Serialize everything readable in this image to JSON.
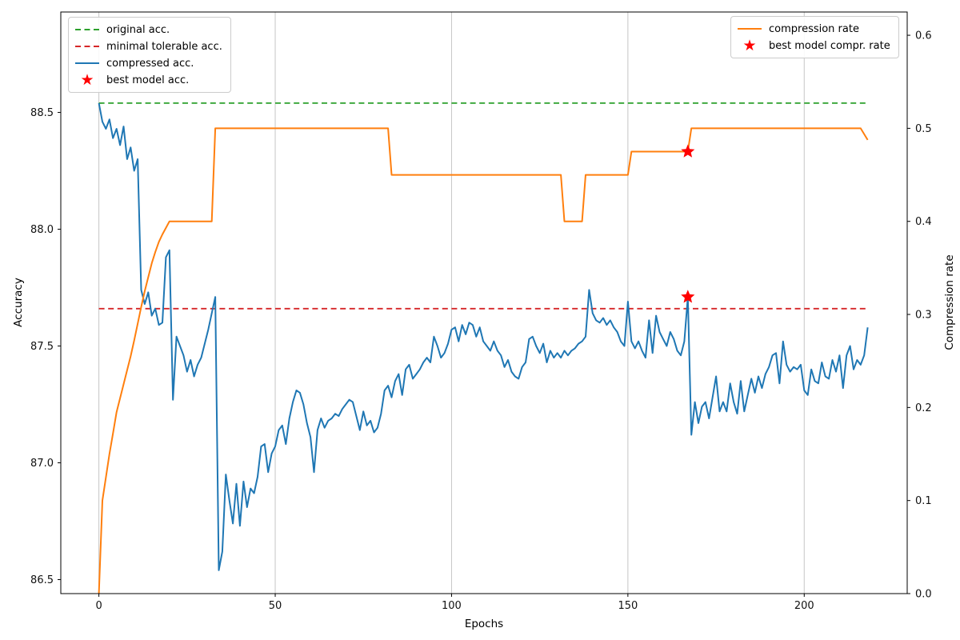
{
  "chart_data": {
    "type": "line",
    "title": "",
    "xlabel": "Epochs",
    "ylabel_left": "Accuracy",
    "ylabel_right": "Compression rate",
    "xlim": [
      -10.8,
      229.2
    ],
    "ylim_left": [
      86.44,
      88.93
    ],
    "ylim_right": [
      0.0,
      0.625
    ],
    "xticks": [
      0,
      50,
      100,
      150,
      200
    ],
    "yticks_left": [
      86.5,
      87.0,
      87.5,
      88.0,
      88.5
    ],
    "yticks_right": [
      0.0,
      0.1,
      0.2,
      0.3,
      0.4,
      0.5,
      0.6
    ],
    "grid": "vertical-gridlines-only",
    "grid_color": "#c6c6c6",
    "series": [
      {
        "name": "original acc.",
        "axis": "left",
        "type": "hline",
        "style": "dashed",
        "color": "#2ca02c",
        "y": 88.54,
        "x_range": [
          0,
          218
        ]
      },
      {
        "name": "minimal tolerable acc.",
        "axis": "left",
        "type": "hline",
        "style": "dashed",
        "color": "#d62728",
        "y": 87.66,
        "x_range": [
          0,
          218
        ]
      },
      {
        "name": "compressed acc.",
        "axis": "left",
        "type": "line",
        "style": "solid",
        "color": "#1f77b4",
        "x_start": 0,
        "x_step": 1,
        "values": [
          88.54,
          88.46,
          88.43,
          88.47,
          88.39,
          88.43,
          88.36,
          88.44,
          88.3,
          88.35,
          88.25,
          88.3,
          87.74,
          87.68,
          87.73,
          87.63,
          87.66,
          87.59,
          87.6,
          87.88,
          87.91,
          87.27,
          87.54,
          87.5,
          87.46,
          87.39,
          87.44,
          87.37,
          87.42,
          87.45,
          87.51,
          87.57,
          87.64,
          87.71,
          86.54,
          86.62,
          86.95,
          86.84,
          86.74,
          86.91,
          86.73,
          86.92,
          86.81,
          86.89,
          86.87,
          86.94,
          87.07,
          87.08,
          86.96,
          87.04,
          87.07,
          87.14,
          87.16,
          87.08,
          87.19,
          87.26,
          87.31,
          87.3,
          87.25,
          87.17,
          87.11,
          86.96,
          87.14,
          87.19,
          87.15,
          87.18,
          87.19,
          87.21,
          87.2,
          87.23,
          87.25,
          87.27,
          87.26,
          87.2,
          87.14,
          87.22,
          87.16,
          87.18,
          87.13,
          87.15,
          87.21,
          87.31,
          87.33,
          87.28,
          87.35,
          87.38,
          87.29,
          87.4,
          87.42,
          87.36,
          87.38,
          87.4,
          87.43,
          87.45,
          87.43,
          87.54,
          87.5,
          87.45,
          87.47,
          87.51,
          87.57,
          87.58,
          87.52,
          87.59,
          87.55,
          87.6,
          87.59,
          87.54,
          87.58,
          87.52,
          87.5,
          87.48,
          87.52,
          87.48,
          87.46,
          87.41,
          87.44,
          87.39,
          87.37,
          87.36,
          87.41,
          87.43,
          87.53,
          87.54,
          87.5,
          87.47,
          87.51,
          87.43,
          87.48,
          87.45,
          87.47,
          87.45,
          87.48,
          87.46,
          87.48,
          87.49,
          87.51,
          87.52,
          87.54,
          87.74,
          87.64,
          87.61,
          87.6,
          87.62,
          87.59,
          87.61,
          87.58,
          87.56,
          87.52,
          87.5,
          87.69,
          87.52,
          87.49,
          87.52,
          87.48,
          87.45,
          87.61,
          87.47,
          87.63,
          87.56,
          87.53,
          87.5,
          87.56,
          87.53,
          87.48,
          87.46,
          87.52,
          87.71,
          87.12,
          87.26,
          87.17,
          87.24,
          87.26,
          87.19,
          87.28,
          87.37,
          87.22,
          87.26,
          87.22,
          87.34,
          87.26,
          87.21,
          87.35,
          87.22,
          87.29,
          87.36,
          87.3,
          87.37,
          87.32,
          87.38,
          87.41,
          87.46,
          87.47,
          87.34,
          87.52,
          87.42,
          87.39,
          87.41,
          87.4,
          87.42,
          87.31,
          87.29,
          87.4,
          87.35,
          87.34,
          87.43,
          87.37,
          87.36,
          87.44,
          87.39,
          87.46,
          87.32,
          87.46,
          87.5,
          87.4,
          87.44,
          87.42,
          87.46,
          87.58
        ]
      },
      {
        "name": "compression rate",
        "axis": "right",
        "type": "line",
        "style": "solid",
        "color": "#ff7f0e",
        "points": [
          [
            0,
            0.0
          ],
          [
            1,
            0.1
          ],
          [
            2,
            0.125
          ],
          [
            3,
            0.15
          ],
          [
            4,
            0.172
          ],
          [
            5,
            0.195
          ],
          [
            6,
            0.21
          ],
          [
            7,
            0.225
          ],
          [
            8,
            0.24
          ],
          [
            9,
            0.255
          ],
          [
            10,
            0.272
          ],
          [
            11,
            0.29
          ],
          [
            12,
            0.308
          ],
          [
            13,
            0.325
          ],
          [
            14,
            0.34
          ],
          [
            15,
            0.355
          ],
          [
            16,
            0.367
          ],
          [
            17,
            0.378
          ],
          [
            18,
            0.386
          ],
          [
            19,
            0.393
          ],
          [
            20,
            0.4
          ],
          [
            32,
            0.4
          ],
          [
            33,
            0.5
          ],
          [
            82,
            0.5
          ],
          [
            83,
            0.45
          ],
          [
            131,
            0.45
          ],
          [
            132,
            0.4
          ],
          [
            137,
            0.4
          ],
          [
            138,
            0.45
          ],
          [
            150,
            0.45
          ],
          [
            151,
            0.475
          ],
          [
            167,
            0.475
          ],
          [
            168,
            0.5
          ],
          [
            216,
            0.5
          ],
          [
            218,
            0.4875
          ]
        ]
      }
    ],
    "markers": [
      {
        "name": "best model acc.",
        "axis": "left",
        "shape": "star",
        "color": "#ff0000",
        "x": 167,
        "y": 87.71
      },
      {
        "name": "best model compr. rate",
        "axis": "right",
        "shape": "star",
        "color": "#ff0000",
        "x": 167,
        "y": 0.475
      }
    ],
    "legends": {
      "upper_left": {
        "items": [
          {
            "label": "original acc.",
            "marker": "dashed",
            "color": "#2ca02c"
          },
          {
            "label": "minimal tolerable acc.",
            "marker": "dashed",
            "color": "#d62728"
          },
          {
            "label": "compressed acc.",
            "marker": "line",
            "color": "#1f77b4"
          },
          {
            "label": "best model acc.",
            "marker": "star",
            "color": "#ff0000"
          }
        ]
      },
      "upper_right": {
        "items": [
          {
            "label": "compression rate",
            "marker": "line",
            "color": "#ff7f0e"
          },
          {
            "label": "best model compr. rate",
            "marker": "star",
            "color": "#ff0000"
          }
        ]
      }
    },
    "colors": {
      "compressed_acc": "#1f77b4",
      "compression_rate": "#ff7f0e",
      "original_acc": "#2ca02c",
      "minimal_tolerable_acc": "#d62728",
      "best_model_marker": "#ff0000"
    }
  }
}
